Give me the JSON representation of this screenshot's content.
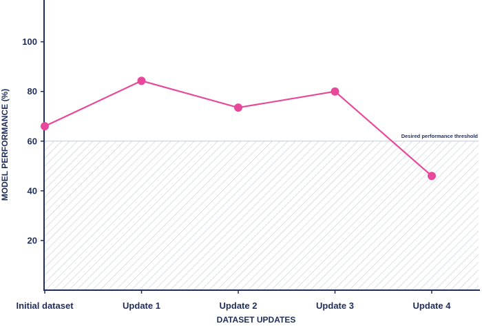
{
  "chart_data": {
    "type": "line",
    "xlabel": "DATASET UPDATES",
    "ylabel": "MODEL PERFORMANCE (%)",
    "categories": [
      "Initial dataset",
      "Update 1",
      "Update 2",
      "Update 3",
      "Update 4"
    ],
    "series": [
      {
        "values": [
          66,
          84.3,
          73.5,
          80,
          46
        ]
      }
    ],
    "yticks": [
      20,
      40,
      60,
      80,
      100
    ],
    "ylim": [
      0,
      116
    ],
    "grid": false,
    "threshold": {
      "value": 60,
      "label": "Desired performance threshold",
      "region": "hatched area below threshold"
    },
    "colors": {
      "line": "#e8489a",
      "axis": "#1f2d5a",
      "hatch": "#c4c9d4"
    }
  }
}
